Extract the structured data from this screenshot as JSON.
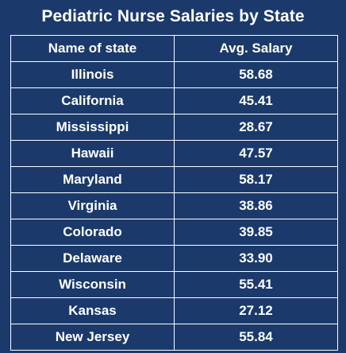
{
  "colors": {
    "background": "#1b3a6b",
    "text": "#ffffff",
    "border": "#ffffff"
  },
  "chart_data": {
    "type": "table",
    "title": "Pediatric Nurse Salaries by State",
    "columns": [
      "Name of state",
      "Avg. Salary"
    ],
    "rows": [
      [
        "Illinois",
        "58.68"
      ],
      [
        "California",
        "45.41"
      ],
      [
        "Mississippi",
        "28.67"
      ],
      [
        "Hawaii",
        "47.57"
      ],
      [
        "Maryland",
        "58.17"
      ],
      [
        "Virginia",
        "38.86"
      ],
      [
        "Colorado",
        "39.85"
      ],
      [
        "Delaware",
        "33.90"
      ],
      [
        "Wisconsin",
        "55.41"
      ],
      [
        "Kansas",
        "27.12"
      ],
      [
        "New Jersey",
        "55.84"
      ]
    ]
  }
}
